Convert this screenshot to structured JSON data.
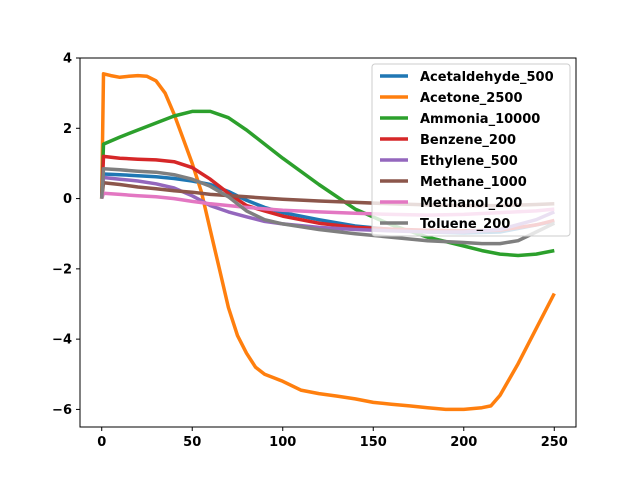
{
  "chart_data": {
    "type": "line",
    "title": "",
    "xlabel": "",
    "ylabel": "",
    "xlim": [
      -12,
      262
    ],
    "ylim": [
      -6.5,
      4.0
    ],
    "xticks": [
      0,
      50,
      100,
      150,
      200,
      250
    ],
    "yticks": [
      4,
      2,
      0,
      -2,
      -4,
      -6
    ],
    "xtick_labels": [
      "0",
      "50",
      "100",
      "150",
      "200",
      "250"
    ],
    "ytick_labels": [
      "4",
      "2",
      "0",
      "−2",
      "−4",
      "−6"
    ],
    "grid": false,
    "legend": "top-right",
    "series": [
      {
        "name": "Acetaldehyde_500",
        "color": "#1f77b4",
        "x": [
          0,
          1,
          10,
          20,
          30,
          40,
          50,
          60,
          70,
          80,
          90,
          100,
          120,
          140,
          160,
          180,
          200,
          220,
          240,
          250
        ],
        "y": [
          0.0,
          0.7,
          0.68,
          0.65,
          0.62,
          0.57,
          0.5,
          0.4,
          0.2,
          -0.05,
          -0.25,
          -0.4,
          -0.6,
          -0.78,
          -0.88,
          -0.95,
          -0.98,
          -0.95,
          -0.75,
          -0.65
        ]
      },
      {
        "name": "Acetone_2500",
        "color": "#ff7f0e",
        "x": [
          0,
          1,
          5,
          10,
          15,
          20,
          25,
          30,
          35,
          40,
          45,
          50,
          55,
          60,
          65,
          70,
          75,
          80,
          85,
          90,
          95,
          100,
          110,
          120,
          130,
          140,
          150,
          160,
          170,
          180,
          190,
          200,
          210,
          215,
          220,
          230,
          240,
          250
        ],
        "y": [
          0.0,
          3.55,
          3.5,
          3.45,
          3.48,
          3.5,
          3.48,
          3.35,
          3.0,
          2.4,
          1.7,
          1.0,
          0.2,
          -0.9,
          -2.0,
          -3.1,
          -3.9,
          -4.4,
          -4.8,
          -5.0,
          -5.1,
          -5.2,
          -5.45,
          -5.55,
          -5.62,
          -5.7,
          -5.8,
          -5.85,
          -5.9,
          -5.95,
          -6.0,
          -6.0,
          -5.95,
          -5.9,
          -5.6,
          -4.7,
          -3.7,
          -2.7
        ]
      },
      {
        "name": "Ammonia_10000",
        "color": "#2ca02c",
        "x": [
          0,
          1,
          10,
          20,
          30,
          40,
          50,
          60,
          70,
          80,
          90,
          100,
          120,
          140,
          160,
          180,
          200,
          210,
          220,
          230,
          240,
          250
        ],
        "y": [
          0.0,
          1.55,
          1.75,
          1.95,
          2.15,
          2.35,
          2.48,
          2.48,
          2.3,
          1.95,
          1.55,
          1.15,
          0.4,
          -0.3,
          -0.75,
          -1.1,
          -1.35,
          -1.48,
          -1.58,
          -1.62,
          -1.58,
          -1.48
        ]
      },
      {
        "name": "Benzene_200",
        "color": "#d62728",
        "x": [
          0,
          1,
          10,
          20,
          30,
          40,
          50,
          60,
          70,
          80,
          90,
          100,
          120,
          140,
          160,
          180,
          200,
          220,
          240,
          250
        ],
        "y": [
          0.0,
          1.2,
          1.15,
          1.12,
          1.1,
          1.05,
          0.88,
          0.55,
          0.15,
          -0.2,
          -0.35,
          -0.5,
          -0.7,
          -0.82,
          -0.87,
          -0.9,
          -0.92,
          -0.9,
          -0.75,
          -0.62
        ]
      },
      {
        "name": "Ethylene_500",
        "color": "#9467bd",
        "x": [
          0,
          1,
          10,
          20,
          30,
          40,
          50,
          60,
          70,
          80,
          90,
          100,
          120,
          140,
          160,
          180,
          200,
          220,
          240,
          250
        ],
        "y": [
          0.0,
          0.6,
          0.55,
          0.5,
          0.42,
          0.3,
          0.08,
          -0.2,
          -0.38,
          -0.52,
          -0.65,
          -0.72,
          -0.82,
          -0.88,
          -0.92,
          -0.95,
          -0.95,
          -0.88,
          -0.6,
          -0.38
        ]
      },
      {
        "name": "Methane_1000",
        "color": "#8c564b",
        "x": [
          0,
          1,
          10,
          20,
          30,
          40,
          50,
          60,
          80,
          100,
          120,
          140,
          160,
          180,
          200,
          220,
          240,
          250
        ],
        "y": [
          0.0,
          0.45,
          0.4,
          0.33,
          0.28,
          0.22,
          0.18,
          0.12,
          0.05,
          -0.02,
          -0.07,
          -0.11,
          -0.15,
          -0.18,
          -0.2,
          -0.2,
          -0.17,
          -0.15
        ]
      },
      {
        "name": "Methanol_200",
        "color": "#e377c2",
        "x": [
          0,
          1,
          10,
          20,
          30,
          40,
          50,
          60,
          80,
          100,
          120,
          140,
          160,
          180,
          200,
          220,
          240,
          250
        ],
        "y": [
          0.0,
          0.15,
          0.12,
          0.08,
          0.05,
          0.0,
          -0.08,
          -0.15,
          -0.25,
          -0.33,
          -0.38,
          -0.42,
          -0.45,
          -0.47,
          -0.45,
          -0.4,
          -0.35,
          -0.3
        ]
      },
      {
        "name": "Toluene_200",
        "color": "#7f7f7f",
        "x": [
          0,
          1,
          10,
          20,
          30,
          40,
          50,
          60,
          70,
          80,
          90,
          100,
          120,
          140,
          160,
          180,
          200,
          210,
          220,
          230,
          240,
          250
        ],
        "y": [
          0.0,
          0.85,
          0.82,
          0.78,
          0.75,
          0.68,
          0.55,
          0.35,
          0.05,
          -0.35,
          -0.6,
          -0.72,
          -0.88,
          -1.0,
          -1.1,
          -1.2,
          -1.25,
          -1.28,
          -1.28,
          -1.2,
          -0.95,
          -0.7
        ]
      }
    ]
  }
}
